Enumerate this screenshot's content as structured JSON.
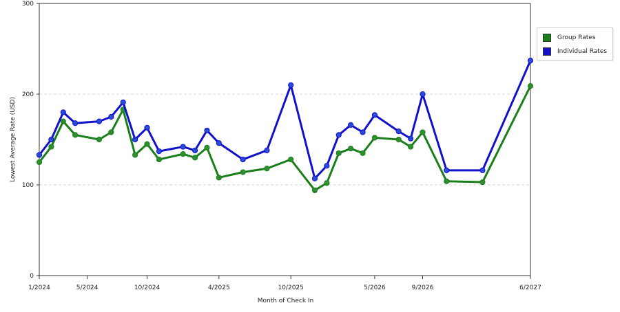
{
  "chart_data": {
    "type": "line",
    "x_dates": [
      "2024-01",
      "2024-02",
      "2024-03",
      "2024-04",
      "2024-05",
      "2024-06",
      "2024-07",
      "2024-08",
      "2024-09",
      "2024-10",
      "2024-11",
      "2024-12",
      "2025-01",
      "2025-02",
      "2025-03",
      "2025-04",
      "2025-05",
      "2025-06",
      "2025-07",
      "2025-08",
      "2025-09",
      "2025-10",
      "2025-11",
      "2025-12",
      "2026-01",
      "2026-02",
      "2026-03",
      "2026-04",
      "2026-05",
      "2026-06",
      "2026-07",
      "2026-08",
      "2026-09",
      "2026-10",
      "2026-11",
      "2026-12",
      "2027-01",
      "2027-02",
      "2027-03",
      "2027-04",
      "2027-05",
      "2027-06"
    ],
    "x_ticks": [
      "1/2024",
      "5/2024",
      "10/2024",
      "4/2025",
      "10/2025",
      "5/2026",
      "9/2026",
      "6/2027"
    ],
    "x_tick_dates": [
      "2024-01",
      "2024-05",
      "2024-10",
      "2025-04",
      "2025-10",
      "2026-05",
      "2026-09",
      "2027-06"
    ],
    "xlabel": "Month of Check In",
    "ylabel": "Lowest Average Rate (USD)",
    "ylim": [
      0,
      300
    ],
    "y_ticks": [
      0,
      100,
      200,
      300
    ],
    "grid": "horizontal dashed",
    "legend_position": "right",
    "series": [
      {
        "name": "Group Rates",
        "color": "#1a7f1a",
        "marker_color": "#2f8f2f",
        "points": [
          [
            "2024-01",
            125
          ],
          [
            "2024-02",
            142
          ],
          [
            "2024-03",
            170
          ],
          [
            "2024-04",
            155
          ],
          [
            "2024-06",
            150
          ],
          [
            "2024-07",
            158
          ],
          [
            "2024-08",
            183
          ],
          [
            "2024-09",
            133
          ],
          [
            "2024-10",
            145
          ],
          [
            "2024-11",
            128
          ],
          [
            "2025-01",
            134
          ],
          [
            "2025-02",
            130
          ],
          [
            "2025-03",
            141
          ],
          [
            "2025-04",
            108
          ],
          [
            "2025-06",
            114
          ],
          [
            "2025-08",
            118
          ],
          [
            "2025-10",
            128
          ],
          [
            "2025-12",
            94
          ],
          [
            "2026-01",
            102
          ],
          [
            "2026-02",
            135
          ],
          [
            "2026-03",
            140
          ],
          [
            "2026-04",
            135
          ],
          [
            "2026-05",
            152
          ],
          [
            "2026-07",
            150
          ],
          [
            "2026-08",
            142
          ],
          [
            "2026-09",
            158
          ],
          [
            "2026-11",
            104
          ],
          [
            "2027-02",
            103
          ],
          [
            "2027-06",
            209
          ]
        ]
      },
      {
        "name": "Individual Rates",
        "color": "#1111cc",
        "marker_color": "#2a4bd8",
        "points": [
          [
            "2024-01",
            133
          ],
          [
            "2024-02",
            150
          ],
          [
            "2024-03",
            180
          ],
          [
            "2024-04",
            168
          ],
          [
            "2024-06",
            170
          ],
          [
            "2024-07",
            175
          ],
          [
            "2024-08",
            191
          ],
          [
            "2024-09",
            150
          ],
          [
            "2024-10",
            163
          ],
          [
            "2024-11",
            137
          ],
          [
            "2025-01",
            142
          ],
          [
            "2025-02",
            138
          ],
          [
            "2025-03",
            160
          ],
          [
            "2025-04",
            146
          ],
          [
            "2025-06",
            128
          ],
          [
            "2025-08",
            138
          ],
          [
            "2025-10",
            210
          ],
          [
            "2025-12",
            107
          ],
          [
            "2026-01",
            121
          ],
          [
            "2026-02",
            155
          ],
          [
            "2026-03",
            166
          ],
          [
            "2026-04",
            158
          ],
          [
            "2026-05",
            177
          ],
          [
            "2026-07",
            159
          ],
          [
            "2026-08",
            151
          ],
          [
            "2026-09",
            200
          ],
          [
            "2026-11",
            116
          ],
          [
            "2027-02",
            116
          ],
          [
            "2027-06",
            237
          ]
        ]
      }
    ]
  }
}
